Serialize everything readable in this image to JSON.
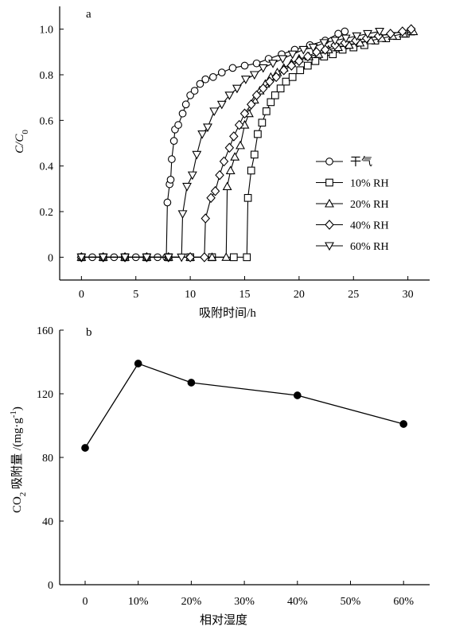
{
  "chart_data": [
    {
      "panel": "a",
      "type": "line",
      "xlabel": "吸附时间/h",
      "ylabel_main": "C/C",
      "ylabel_sub": "0",
      "xlim": [
        -2,
        32
      ],
      "ylim": [
        -0.1,
        1.1
      ],
      "xticks": [
        0,
        5,
        10,
        15,
        20,
        25,
        30
      ],
      "yticks": [
        0,
        0.2,
        0.4,
        0.6,
        0.8,
        1.0
      ],
      "ytick_labels": [
        "0",
        "0.2",
        "0.4",
        "0.6",
        "0.8",
        "1.0"
      ],
      "legend_position": "right",
      "series": [
        {
          "name": "干气",
          "marker": "circle",
          "points": [
            [
              0,
              0
            ],
            [
              1,
              0
            ],
            [
              2,
              0
            ],
            [
              3,
              0
            ],
            [
              4,
              0
            ],
            [
              5,
              0
            ],
            [
              6,
              0
            ],
            [
              7,
              0
            ],
            [
              7.8,
              0
            ],
            [
              7.9,
              0.24
            ],
            [
              8.1,
              0.32
            ],
            [
              8.2,
              0.34
            ],
            [
              8.3,
              0.43
            ],
            [
              8.5,
              0.51
            ],
            [
              8.6,
              0.56
            ],
            [
              8.9,
              0.58
            ],
            [
              9.3,
              0.63
            ],
            [
              9.6,
              0.67
            ],
            [
              10.0,
              0.71
            ],
            [
              10.4,
              0.73
            ],
            [
              10.9,
              0.76
            ],
            [
              11.4,
              0.78
            ],
            [
              12.1,
              0.79
            ],
            [
              12.9,
              0.81
            ],
            [
              13.9,
              0.83
            ],
            [
              15.0,
              0.84
            ],
            [
              16.1,
              0.85
            ],
            [
              17.2,
              0.87
            ],
            [
              18.4,
              0.89
            ],
            [
              19.6,
              0.91
            ],
            [
              21.0,
              0.93
            ],
            [
              22.4,
              0.95
            ],
            [
              23.6,
              0.98
            ],
            [
              24.2,
              0.99
            ]
          ]
        },
        {
          "name": "10%  RH",
          "marker": "square",
          "points": [
            [
              0,
              0
            ],
            [
              2,
              0
            ],
            [
              4,
              0
            ],
            [
              6,
              0
            ],
            [
              8,
              0
            ],
            [
              10,
              0
            ],
            [
              12,
              0
            ],
            [
              14,
              0
            ],
            [
              15.2,
              0
            ],
            [
              15.3,
              0.26
            ],
            [
              15.6,
              0.38
            ],
            [
              15.9,
              0.45
            ],
            [
              16.2,
              0.54
            ],
            [
              16.6,
              0.59
            ],
            [
              17.0,
              0.64
            ],
            [
              17.4,
              0.68
            ],
            [
              17.8,
              0.71
            ],
            [
              18.3,
              0.74
            ],
            [
              18.8,
              0.77
            ],
            [
              19.4,
              0.79
            ],
            [
              20.1,
              0.82
            ],
            [
              20.8,
              0.84
            ],
            [
              21.5,
              0.86
            ],
            [
              22.3,
              0.88
            ],
            [
              23.1,
              0.89
            ],
            [
              24.0,
              0.91
            ],
            [
              25.0,
              0.92
            ],
            [
              26.0,
              0.93
            ],
            [
              27.0,
              0.95
            ],
            [
              28.0,
              0.96
            ],
            [
              29.0,
              0.97
            ],
            [
              29.8,
              0.98
            ],
            [
              30.3,
              0.99
            ]
          ]
        },
        {
          "name": "20% RH",
          "marker": "triangle-up",
          "points": [
            [
              0,
              0
            ],
            [
              2,
              0
            ],
            [
              4,
              0
            ],
            [
              6,
              0
            ],
            [
              8,
              0
            ],
            [
              10,
              0
            ],
            [
              12,
              0
            ],
            [
              13.3,
              0
            ],
            [
              13.4,
              0.31
            ],
            [
              13.7,
              0.38
            ],
            [
              14.1,
              0.44
            ],
            [
              14.6,
              0.49
            ],
            [
              15.0,
              0.58
            ],
            [
              15.4,
              0.63
            ],
            [
              15.9,
              0.69
            ],
            [
              16.4,
              0.73
            ],
            [
              16.9,
              0.76
            ],
            [
              17.4,
              0.79
            ],
            [
              18.0,
              0.81
            ],
            [
              18.6,
              0.83
            ],
            [
              19.3,
              0.85
            ],
            [
              20.0,
              0.87
            ],
            [
              20.9,
              0.88
            ],
            [
              21.8,
              0.89
            ],
            [
              22.7,
              0.91
            ],
            [
              23.6,
              0.92
            ],
            [
              24.6,
              0.93
            ],
            [
              25.6,
              0.94
            ],
            [
              26.6,
              0.95
            ],
            [
              27.6,
              0.96
            ],
            [
              28.6,
              0.97
            ],
            [
              29.6,
              0.98
            ],
            [
              30.5,
              0.99
            ]
          ]
        },
        {
          "name": "40% RH",
          "marker": "diamond",
          "points": [
            [
              0,
              0
            ],
            [
              2,
              0
            ],
            [
              4,
              0
            ],
            [
              6,
              0
            ],
            [
              8,
              0
            ],
            [
              10,
              0
            ],
            [
              11.3,
              0
            ],
            [
              11.4,
              0.17
            ],
            [
              11.9,
              0.26
            ],
            [
              12.3,
              0.29
            ],
            [
              12.7,
              0.36
            ],
            [
              13.1,
              0.42
            ],
            [
              13.6,
              0.48
            ],
            [
              14.0,
              0.53
            ],
            [
              14.5,
              0.58
            ],
            [
              15.0,
              0.63
            ],
            [
              15.6,
              0.67
            ],
            [
              16.1,
              0.71
            ],
            [
              16.7,
              0.74
            ],
            [
              17.3,
              0.77
            ],
            [
              17.9,
              0.79
            ],
            [
              18.6,
              0.82
            ],
            [
              19.3,
              0.84
            ],
            [
              20.0,
              0.86
            ],
            [
              20.8,
              0.88
            ],
            [
              21.6,
              0.9
            ],
            [
              22.4,
              0.91
            ],
            [
              23.3,
              0.93
            ],
            [
              24.2,
              0.94
            ],
            [
              25.2,
              0.95
            ],
            [
              26.2,
              0.96
            ],
            [
              27.3,
              0.97
            ],
            [
              28.4,
              0.98
            ],
            [
              29.5,
              0.99
            ],
            [
              30.3,
              1.0
            ]
          ]
        },
        {
          "name": "60% RH",
          "marker": "triangle-down",
          "points": [
            [
              0,
              0
            ],
            [
              2,
              0
            ],
            [
              4,
              0
            ],
            [
              6,
              0
            ],
            [
              8,
              0
            ],
            [
              9.2,
              0
            ],
            [
              9.3,
              0.19
            ],
            [
              9.7,
              0.31
            ],
            [
              10.2,
              0.36
            ],
            [
              10.6,
              0.45
            ],
            [
              11.1,
              0.54
            ],
            [
              11.6,
              0.57
            ],
            [
              12.2,
              0.64
            ],
            [
              12.9,
              0.67
            ],
            [
              13.6,
              0.71
            ],
            [
              14.3,
              0.74
            ],
            [
              15.1,
              0.78
            ],
            [
              15.9,
              0.8
            ],
            [
              16.7,
              0.83
            ],
            [
              17.6,
              0.85
            ],
            [
              18.5,
              0.87
            ],
            [
              19.4,
              0.89
            ],
            [
              20.4,
              0.91
            ],
            [
              21.3,
              0.92
            ],
            [
              22.3,
              0.94
            ],
            [
              23.3,
              0.95
            ],
            [
              24.3,
              0.96
            ],
            [
              25.3,
              0.97
            ],
            [
              26.3,
              0.98
            ],
            [
              27.4,
              0.99
            ]
          ]
        }
      ]
    },
    {
      "panel": "b",
      "type": "line",
      "xlabel": "相对湿度",
      "ylabel_pre": "CO",
      "ylabel_sub": "2",
      "ylabel_post": " 吸附量 /(mg·g",
      "ylabel_sup": "-1",
      "ylabel_end": ")",
      "categories": [
        "0",
        "10%",
        "20%",
        "30%",
        "40%",
        "50%",
        "60%"
      ],
      "ylim": [
        0,
        160
      ],
      "yticks": [
        0,
        40,
        80,
        120,
        160
      ],
      "series": [
        {
          "x": [
            0,
            10,
            20,
            40,
            60
          ],
          "values": [
            86,
            139,
            127,
            119,
            101
          ],
          "marker": "filled-circle"
        }
      ]
    }
  ]
}
